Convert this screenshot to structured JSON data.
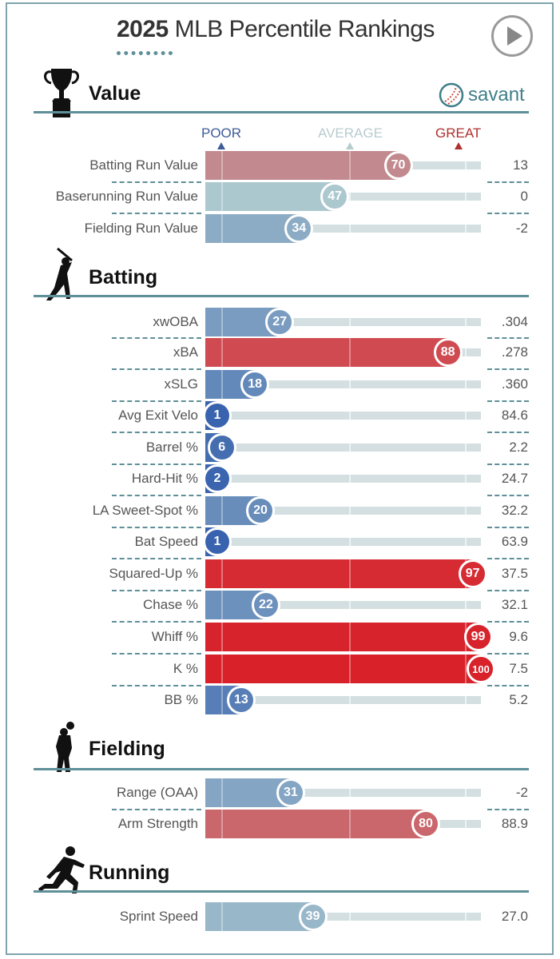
{
  "header": {
    "year": "2025",
    "title": "MLB Percentile Rankings",
    "play_icon": "play-button-icon"
  },
  "brand": {
    "logo_icon": "baseball-icon",
    "text": "savant"
  },
  "legend": {
    "poor": "POOR",
    "average": "AVERAGE",
    "great": "GREAT"
  },
  "colors": {
    "poor": "#3661ad",
    "average": "#b4cfd1",
    "great": "#d82129",
    "section_line": "#5f8f98"
  },
  "sections": [
    {
      "title": "Value",
      "icon": "trophy-icon",
      "rows": [
        {
          "label": "Batting Run Value",
          "percentile": 70,
          "value": "13"
        },
        {
          "label": "Baserunning Run Value",
          "percentile": 47,
          "value": "0"
        },
        {
          "label": "Fielding Run Value",
          "percentile": 34,
          "value": "-2"
        }
      ]
    },
    {
      "title": "Batting",
      "icon": "batter-icon",
      "rows": [
        {
          "label": "xwOBA",
          "percentile": 27,
          "value": ".304"
        },
        {
          "label": "xBA",
          "percentile": 88,
          "value": ".278"
        },
        {
          "label": "xSLG",
          "percentile": 18,
          "value": ".360"
        },
        {
          "label": "Avg Exit Velo",
          "percentile": 1,
          "value": "84.6"
        },
        {
          "label": "Barrel %",
          "percentile": 6,
          "value": "2.2"
        },
        {
          "label": "Hard-Hit %",
          "percentile": 2,
          "value": "24.7"
        },
        {
          "label": "LA Sweet-Spot %",
          "percentile": 20,
          "value": "32.2"
        },
        {
          "label": "Bat Speed",
          "percentile": 1,
          "value": "63.9"
        },
        {
          "label": "Squared-Up %",
          "percentile": 97,
          "value": "37.5"
        },
        {
          "label": "Chase %",
          "percentile": 22,
          "value": "32.1"
        },
        {
          "label": "Whiff %",
          "percentile": 99,
          "value": "9.6"
        },
        {
          "label": "K %",
          "percentile": 100,
          "value": "7.5"
        },
        {
          "label": "BB %",
          "percentile": 13,
          "value": "5.2"
        }
      ]
    },
    {
      "title": "Fielding",
      "icon": "fielder-icon",
      "rows": [
        {
          "label": "Range (OAA)",
          "percentile": 31,
          "value": "-2"
        },
        {
          "label": "Arm Strength",
          "percentile": 80,
          "value": "88.9"
        }
      ]
    },
    {
      "title": "Running",
      "icon": "runner-icon",
      "rows": [
        {
          "label": "Sprint Speed",
          "percentile": 39,
          "value": "27.0"
        }
      ]
    }
  ]
}
